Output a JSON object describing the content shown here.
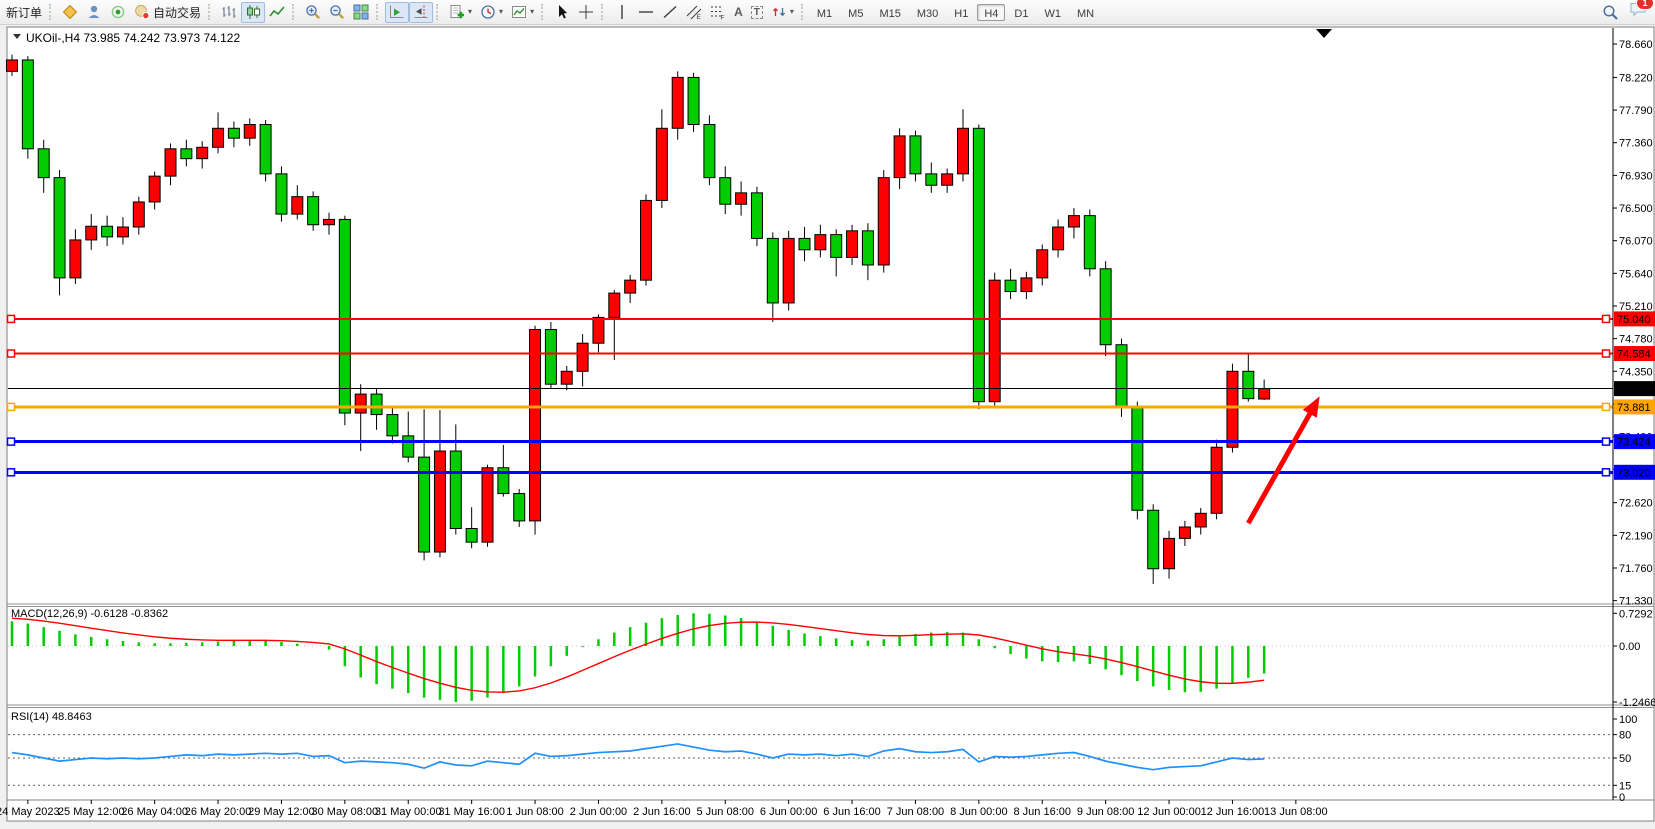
{
  "toolbar": {
    "new_order": "新订单",
    "auto_trading": "自动交易",
    "timeframes": [
      "M1",
      "M5",
      "M15",
      "M30",
      "H1",
      "H4",
      "D1",
      "W1",
      "MN"
    ],
    "active_timeframe": "H4",
    "notification_badge": "1",
    "icons": [
      "metaquotes-icon",
      "community-icon",
      "signals-icon",
      "autotrade-icon",
      "bar-chart-icon",
      "candlestick-chart-icon",
      "line-chart-icon",
      "zoom-in-icon",
      "zoom-out-icon",
      "tile-windows-icon",
      "auto-scroll-icon",
      "chart-shift-icon",
      "indicators-icon",
      "periods-icon",
      "templates-icon",
      "cursor-icon",
      "crosshair-icon",
      "vertical-line-icon",
      "horizontal-line-icon",
      "trendline-icon",
      "equidistant-channel-icon",
      "fibonacci-icon",
      "text-icon",
      "text-label-icon",
      "arrow-tools-icon",
      "search-icon",
      "chat-icon"
    ]
  },
  "colors": {
    "candle_up": "#FF0000",
    "candle_down": "#00CC00",
    "candle_outline": "#000000",
    "macd_histogram": "#00CC00",
    "macd_signal": "#FF0000",
    "rsi_line": "#1E90FF",
    "hline_red": "#FF0000",
    "hline_orange": "#FFA500",
    "hline_blue": "#0000FF",
    "price_line": "#000000",
    "arrow": "#FF0000"
  },
  "chart_data": {
    "type": "candlestick",
    "symbol": "UKOil-",
    "timeframe": "H4",
    "title_text": "UKOil-,H4",
    "last_ohlc": {
      "open": "73.985",
      "high": "74.242",
      "low": "73.973",
      "close": "74.122"
    },
    "price_axis_ticks": [
      "78.660",
      "78.220",
      "77.790",
      "77.360",
      "76.930",
      "76.500",
      "76.070",
      "75.640",
      "75.210",
      "74.780",
      "74.350",
      "73.920",
      "73.490",
      "73.060",
      "72.620",
      "72.190",
      "71.760",
      "71.330"
    ],
    "hlines": [
      {
        "price": 75.04,
        "label": "75.040",
        "color": "#FF0000",
        "width": 2,
        "handles": true
      },
      {
        "price": 74.584,
        "label": "74.584",
        "color": "#FF0000",
        "width": 2,
        "handles": true
      },
      {
        "price": 74.122,
        "label": "74.122",
        "color": "#000000",
        "width": 1,
        "handles": false
      },
      {
        "price": 73.881,
        "label": "73.881",
        "color": "#FFA500",
        "width": 3,
        "handles": true
      },
      {
        "price": 73.424,
        "label": "73.424",
        "color": "#0000FF",
        "width": 3,
        "handles": true
      },
      {
        "price": 73.02,
        "label": "73.020",
        "color": "#0000FF",
        "width": 3,
        "handles": true
      }
    ],
    "time_labels": [
      "24 May 2023",
      "25 May 12:00",
      "26 May 04:00",
      "26 May 20:00",
      "29 May 12:00",
      "30 May 08:00",
      "31 May 00:00",
      "31 May 16:00",
      "1 Jun 08:00",
      "2 Jun 00:00",
      "2 Jun 16:00",
      "5 Jun 08:00",
      "6 Jun 00:00",
      "6 Jun 16:00",
      "7 Jun 08:00",
      "8 Jun 00:00",
      "8 Jun 16:00",
      "9 Jun 08:00",
      "12 Jun 00:00",
      "12 Jun 16:00",
      "13 Jun 08:00"
    ],
    "candles": [
      [
        78.3,
        78.52,
        78.24,
        78.45
      ],
      [
        78.45,
        78.5,
        77.15,
        77.28
      ],
      [
        77.28,
        77.4,
        76.7,
        76.9
      ],
      [
        76.9,
        77.0,
        75.35,
        75.58
      ],
      [
        75.58,
        76.22,
        75.5,
        76.08
      ],
      [
        76.08,
        76.42,
        75.95,
        76.26
      ],
      [
        76.26,
        76.4,
        76.0,
        76.12
      ],
      [
        76.12,
        76.38,
        76.02,
        76.25
      ],
      [
        76.25,
        76.65,
        76.15,
        76.58
      ],
      [
        76.58,
        76.98,
        76.48,
        76.92
      ],
      [
        76.92,
        77.35,
        76.8,
        77.28
      ],
      [
        77.28,
        77.4,
        77.05,
        77.15
      ],
      [
        77.15,
        77.38,
        77.02,
        77.3
      ],
      [
        77.3,
        77.76,
        77.22,
        77.55
      ],
      [
        77.55,
        77.64,
        77.3,
        77.42
      ],
      [
        77.42,
        77.68,
        77.32,
        77.6
      ],
      [
        77.6,
        77.66,
        76.85,
        76.95
      ],
      [
        76.95,
        77.05,
        76.32,
        76.42
      ],
      [
        76.42,
        76.8,
        76.35,
        76.65
      ],
      [
        76.65,
        76.72,
        76.2,
        76.28
      ],
      [
        76.28,
        76.44,
        76.15,
        76.35
      ],
      [
        76.35,
        76.4,
        73.64,
        73.8
      ],
      [
        73.8,
        74.18,
        73.3,
        74.05
      ],
      [
        74.05,
        74.12,
        73.58,
        73.78
      ],
      [
        73.78,
        73.86,
        73.4,
        73.5
      ],
      [
        73.5,
        73.82,
        73.15,
        73.22
      ],
      [
        73.22,
        73.85,
        71.86,
        71.97
      ],
      [
        71.97,
        73.84,
        71.9,
        73.3
      ],
      [
        73.3,
        73.65,
        72.2,
        72.28
      ],
      [
        72.28,
        72.56,
        72.02,
        72.1
      ],
      [
        72.1,
        73.12,
        72.04,
        73.08
      ],
      [
        73.08,
        73.38,
        72.7,
        72.74
      ],
      [
        72.74,
        72.8,
        72.3,
        72.38
      ],
      [
        72.38,
        74.95,
        72.2,
        74.9
      ],
      [
        74.9,
        75.0,
        74.12,
        74.18
      ],
      [
        74.18,
        74.42,
        74.1,
        74.35
      ],
      [
        74.35,
        74.84,
        74.15,
        74.72
      ],
      [
        74.72,
        75.1,
        74.6,
        75.06
      ],
      [
        75.06,
        75.42,
        74.5,
        75.38
      ],
      [
        75.38,
        75.62,
        75.25,
        75.55
      ],
      [
        75.55,
        76.68,
        75.48,
        76.6
      ],
      [
        76.6,
        77.8,
        76.5,
        77.55
      ],
      [
        77.55,
        78.3,
        77.4,
        78.22
      ],
      [
        78.22,
        78.28,
        77.5,
        77.6
      ],
      [
        77.6,
        77.72,
        76.8,
        76.9
      ],
      [
        76.9,
        77.05,
        76.42,
        76.55
      ],
      [
        76.55,
        76.85,
        76.4,
        76.7
      ],
      [
        76.7,
        76.78,
        76.0,
        76.1
      ],
      [
        76.1,
        76.18,
        75.0,
        75.25
      ],
      [
        75.25,
        76.2,
        75.15,
        76.1
      ],
      [
        76.1,
        76.25,
        75.8,
        75.95
      ],
      [
        75.95,
        76.28,
        75.85,
        76.15
      ],
      [
        76.15,
        76.22,
        75.6,
        75.85
      ],
      [
        75.85,
        76.28,
        75.75,
        76.2
      ],
      [
        76.2,
        76.3,
        75.55,
        75.75
      ],
      [
        75.75,
        77.0,
        75.65,
        76.9
      ],
      [
        76.9,
        77.55,
        76.75,
        77.45
      ],
      [
        77.45,
        77.52,
        76.85,
        76.95
      ],
      [
        76.95,
        77.1,
        76.7,
        76.8
      ],
      [
        76.8,
        77.02,
        76.7,
        76.95
      ],
      [
        76.95,
        77.8,
        76.85,
        77.55
      ],
      [
        77.55,
        77.6,
        73.85,
        73.95
      ],
      [
        73.95,
        75.65,
        73.9,
        75.55
      ],
      [
        75.55,
        75.7,
        75.3,
        75.4
      ],
      [
        75.4,
        75.66,
        75.3,
        75.58
      ],
      [
        75.58,
        76.02,
        75.48,
        75.95
      ],
      [
        75.95,
        76.35,
        75.85,
        76.25
      ],
      [
        76.25,
        76.5,
        76.1,
        76.4
      ],
      [
        76.4,
        76.48,
        75.6,
        75.7
      ],
      [
        75.7,
        75.8,
        74.55,
        74.7
      ],
      [
        74.7,
        74.78,
        73.75,
        73.88
      ],
      [
        73.88,
        73.95,
        72.4,
        72.52
      ],
      [
        72.52,
        72.6,
        71.55,
        71.75
      ],
      [
        71.75,
        72.25,
        71.62,
        72.15
      ],
      [
        72.15,
        72.38,
        72.05,
        72.3
      ],
      [
        72.3,
        72.55,
        72.2,
        72.48
      ],
      [
        72.48,
        73.45,
        72.4,
        73.35
      ],
      [
        73.35,
        74.45,
        73.28,
        74.35
      ],
      [
        74.35,
        74.58,
        73.95,
        73.99
      ],
      [
        73.985,
        74.242,
        73.973,
        74.122
      ]
    ],
    "indicators": [
      {
        "name": "MACD",
        "params": "12,26,9",
        "value": "-0.6128",
        "signal_value": "-0.8362",
        "axis_ticks": [
          "0.7292",
          "0.00",
          "-1.2466"
        ],
        "histogram": [
          0.55,
          0.5,
          0.42,
          0.34,
          0.26,
          0.2,
          0.15,
          0.11,
          0.08,
          0.06,
          0.06,
          0.07,
          0.08,
          0.1,
          0.12,
          0.13,
          0.12,
          0.09,
          0.05,
          0.0,
          -0.08,
          -0.45,
          -0.7,
          -0.85,
          -0.95,
          -1.05,
          -1.15,
          -1.2,
          -1.2466,
          -1.22,
          -1.15,
          -1.05,
          -0.9,
          -0.68,
          -0.45,
          -0.22,
          -0.02,
          0.15,
          0.3,
          0.42,
          0.52,
          0.62,
          0.69,
          0.7292,
          0.72,
          0.68,
          0.62,
          0.54,
          0.45,
          0.36,
          0.28,
          0.22,
          0.17,
          0.13,
          0.12,
          0.15,
          0.21,
          0.27,
          0.3,
          0.31,
          0.3,
          0.15,
          -0.05,
          -0.18,
          -0.28,
          -0.34,
          -0.36,
          -0.34,
          -0.4,
          -0.52,
          -0.65,
          -0.78,
          -0.9,
          -0.98,
          -1.03,
          -1.02,
          -0.95,
          -0.84,
          -0.71,
          -0.6128
        ]
      },
      {
        "name": "RSI",
        "params": "14",
        "value": "48.8463",
        "axis_ticks": [
          "100",
          "80",
          "50",
          "15",
          "0"
        ],
        "levels": [
          80,
          50,
          15
        ],
        "values": [
          57,
          54,
          50,
          46,
          48,
          50,
          49,
          50,
          49,
          50,
          52,
          54,
          53,
          55,
          54,
          55,
          56,
          55,
          56,
          52,
          53,
          44,
          46,
          45,
          44,
          42,
          37,
          45,
          41,
          40,
          46,
          44,
          42,
          56,
          52,
          53,
          55,
          57,
          58,
          59,
          62,
          65,
          68,
          64,
          60,
          58,
          59,
          55,
          50,
          55,
          54,
          55,
          53,
          55,
          52,
          59,
          62,
          58,
          57,
          58,
          61,
          45,
          52,
          51,
          52,
          54,
          56,
          57,
          52,
          46,
          42,
          38,
          35,
          38,
          39,
          40,
          45,
          50,
          48,
          48.85
        ]
      }
    ],
    "annotations": [
      {
        "type": "arrow-up",
        "color": "#FF0000",
        "from_bar": 78,
        "from_price": 72.35,
        "to_bar": 82.5,
        "to_price": 74.02
      }
    ]
  }
}
